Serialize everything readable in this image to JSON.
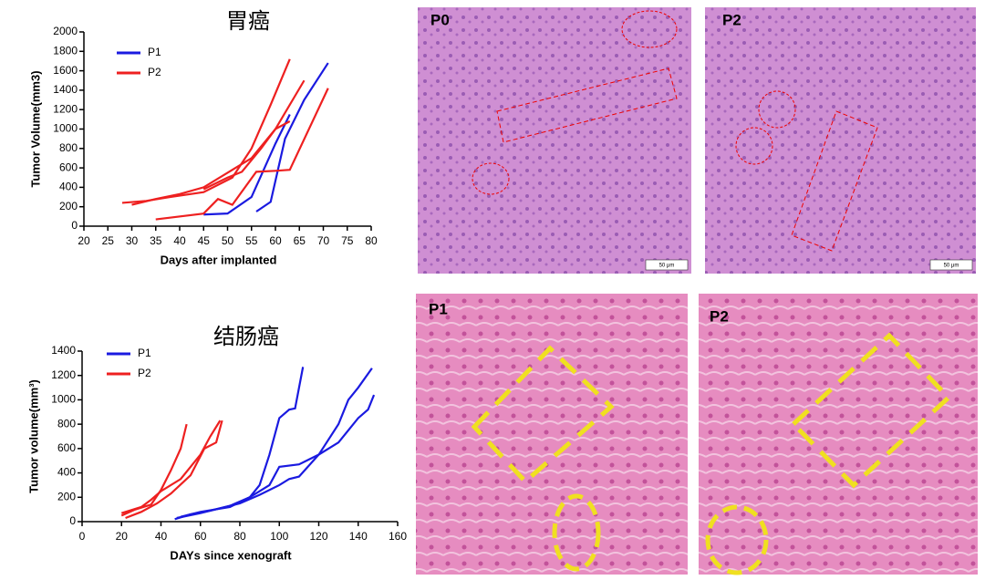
{
  "chart_data": [
    {
      "type": "line",
      "title": "胃癌",
      "xlabel": "Days after implanted",
      "ylabel": "Tumor Volume(mm3)",
      "xlim": [
        20,
        80
      ],
      "xticks": [
        20,
        25,
        30,
        35,
        40,
        45,
        50,
        55,
        60,
        65,
        70,
        75,
        80
      ],
      "ylim": [
        0,
        2000
      ],
      "yticks": [
        0,
        200,
        400,
        600,
        800,
        1000,
        1200,
        1400,
        1600,
        1800,
        2000
      ],
      "series": [
        {
          "name": "P1",
          "color": "#1a1ae0",
          "lines": [
            {
              "x": [
                45,
                50,
                55,
                60,
                63
              ],
              "values": [
                120,
                130,
                300,
                850,
                1150
              ]
            },
            {
              "x": [
                56,
                59,
                62,
                66,
                71
              ],
              "values": [
                150,
                250,
                900,
                1300,
                1680
              ]
            }
          ]
        },
        {
          "name": "P2",
          "color": "#ee2020",
          "lines": [
            {
              "x": [
                28,
                33,
                38,
                45,
                51,
                55,
                59,
                63
              ],
              "values": [
                240,
                260,
                300,
                350,
                500,
                800,
                1250,
                1720
              ]
            },
            {
              "x": [
                30,
                35,
                40,
                45,
                50,
                55,
                60,
                63
              ],
              "values": [
                220,
                280,
                330,
                400,
                550,
                700,
                1000,
                1080
              ]
            },
            {
              "x": [
                35,
                45,
                48,
                51,
                56,
                60,
                63,
                71
              ],
              "values": [
                70,
                130,
                280,
                220,
                560,
                570,
                580,
                1420
              ]
            },
            {
              "x": [
                45,
                50,
                53,
                57,
                60,
                66
              ],
              "values": [
                380,
                500,
                560,
                800,
                1000,
                1500
              ]
            }
          ]
        }
      ]
    },
    {
      "type": "line",
      "title": "结肠癌",
      "xlabel": "DAYs since xenograft",
      "ylabel": "Tumor volume(mm³)",
      "xlim": [
        0,
        160
      ],
      "xticks": [
        0,
        20,
        40,
        60,
        80,
        100,
        120,
        140,
        160
      ],
      "ylim": [
        0,
        1400
      ],
      "yticks": [
        0,
        200,
        400,
        600,
        800,
        1000,
        1200,
        1400
      ],
      "series": [
        {
          "name": "P1",
          "color": "#1a1ae0",
          "lines": [
            {
              "x": [
                47,
                55,
                65,
                75,
                85,
                90,
                95,
                100,
                105,
                108,
                112
              ],
              "values": [
                20,
                60,
                90,
                130,
                200,
                300,
                550,
                850,
                920,
                930,
                1270
              ]
            },
            {
              "x": [
                50,
                60,
                75,
                85,
                95,
                100,
                110,
                120,
                130,
                135,
                140,
                147
              ],
              "values": [
                40,
                80,
                120,
                200,
                300,
                450,
                470,
                550,
                800,
                1000,
                1100,
                1260
              ]
            },
            {
              "x": [
                48,
                60,
                80,
                90,
                100,
                105,
                110,
                120,
                130,
                140,
                145,
                148
              ],
              "values": [
                30,
                70,
                150,
                220,
                300,
                350,
                370,
                550,
                650,
                850,
                920,
                1040
              ]
            }
          ]
        },
        {
          "name": "P2",
          "color": "#ee2020",
          "lines": [
            {
              "x": [
                20,
                27,
                35,
                40,
                45,
                50,
                53
              ],
              "values": [
                50,
                100,
                140,
                260,
                420,
                600,
                800
              ]
            },
            {
              "x": [
                20,
                30,
                35,
                40,
                50,
                55,
                60,
                65,
                70
              ],
              "values": [
                70,
                120,
                180,
                250,
                350,
                450,
                550,
                700,
                830
              ]
            },
            {
              "x": [
                22,
                30,
                38,
                45,
                55,
                62,
                68,
                71
              ],
              "values": [
                30,
                80,
                150,
                230,
                380,
                600,
                650,
                830
              ]
            }
          ]
        }
      ]
    }
  ],
  "panels": [
    {
      "label": "P0",
      "scale": "50 μm"
    },
    {
      "label": "P2",
      "scale": "50 μm"
    },
    {
      "label": "P1"
    },
    {
      "label": "P2"
    }
  ]
}
